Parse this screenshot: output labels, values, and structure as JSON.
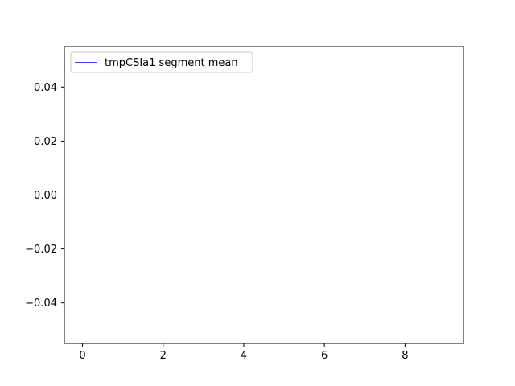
{
  "chart_data": {
    "type": "line",
    "title": "",
    "xlabel": "",
    "ylabel": "",
    "x": [
      0,
      1,
      2,
      3,
      4,
      5,
      6,
      7,
      8,
      9
    ],
    "series": [
      {
        "name": "tmpCSIa1 segment mean",
        "values": [
          0,
          0,
          0,
          0,
          0,
          0,
          0,
          0,
          0,
          0
        ],
        "color": "#0000ff"
      }
    ],
    "xlim": [
      -0.45,
      9.45
    ],
    "ylim": [
      -0.055,
      0.055
    ],
    "xticks": [
      0,
      2,
      4,
      6,
      8
    ],
    "xtick_labels": [
      "0",
      "2",
      "4",
      "6",
      "8"
    ],
    "yticks": [
      0.04,
      0.02,
      0.0,
      -0.02,
      -0.04
    ],
    "ytick_labels": [
      "0.04",
      "0.02",
      "0.00",
      "−0.02",
      "−0.04"
    ],
    "legend": {
      "position": "upper-left",
      "entries": [
        "tmpCSIa1 segment mean"
      ]
    },
    "grid": false
  }
}
